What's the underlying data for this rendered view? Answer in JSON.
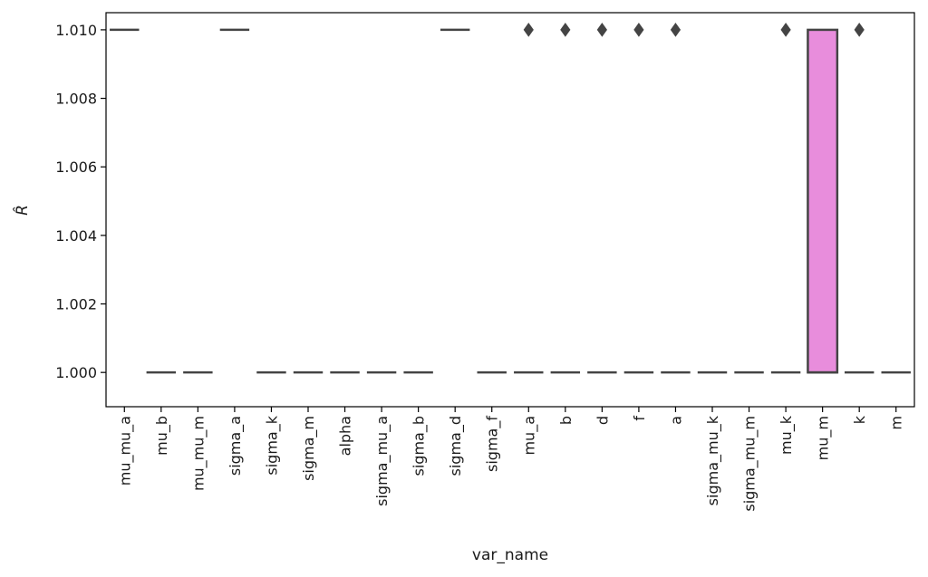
{
  "chart_data": {
    "type": "box",
    "title": "",
    "xlabel": "var_name",
    "ylabel": "R̂",
    "ylim": [
      0.999,
      1.0105
    ],
    "yticks": [
      "1.000",
      "1.002",
      "1.004",
      "1.006",
      "1.008",
      "1.010"
    ],
    "ytick_values": [
      1.0,
      1.002,
      1.004,
      1.006,
      1.008,
      1.01
    ],
    "colors": {
      "box_fill": "#e88ddc",
      "line": "#444444",
      "axis": "#000000"
    },
    "categories": [
      "mu_mu_a",
      "mu_b",
      "mu_mu_m",
      "sigma_a",
      "sigma_k",
      "sigma_m",
      "alpha",
      "sigma_mu_a",
      "sigma_b",
      "sigma_d",
      "sigma_f",
      "mu_a",
      "b",
      "d",
      "f",
      "a",
      "sigma_mu_k",
      "sigma_mu_m",
      "mu_k",
      "mu_m",
      "k",
      "m"
    ],
    "boxes": [
      {
        "q1": 1.01,
        "median": 1.01,
        "q3": 1.01,
        "outliers": []
      },
      {
        "q1": 1.0,
        "median": 1.0,
        "q3": 1.0,
        "outliers": []
      },
      {
        "q1": 1.0,
        "median": 1.0,
        "q3": 1.0,
        "outliers": []
      },
      {
        "q1": 1.01,
        "median": 1.01,
        "q3": 1.01,
        "outliers": []
      },
      {
        "q1": 1.0,
        "median": 1.0,
        "q3": 1.0,
        "outliers": []
      },
      {
        "q1": 1.0,
        "median": 1.0,
        "q3": 1.0,
        "outliers": []
      },
      {
        "q1": 1.0,
        "median": 1.0,
        "q3": 1.0,
        "outliers": []
      },
      {
        "q1": 1.0,
        "median": 1.0,
        "q3": 1.0,
        "outliers": []
      },
      {
        "q1": 1.0,
        "median": 1.0,
        "q3": 1.0,
        "outliers": []
      },
      {
        "q1": 1.01,
        "median": 1.01,
        "q3": 1.01,
        "outliers": []
      },
      {
        "q1": 1.0,
        "median": 1.0,
        "q3": 1.0,
        "outliers": []
      },
      {
        "q1": 1.0,
        "median": 1.0,
        "q3": 1.0,
        "outliers": [
          1.01
        ]
      },
      {
        "q1": 1.0,
        "median": 1.0,
        "q3": 1.0,
        "outliers": [
          1.01
        ]
      },
      {
        "q1": 1.0,
        "median": 1.0,
        "q3": 1.0,
        "outliers": [
          1.01
        ]
      },
      {
        "q1": 1.0,
        "median": 1.0,
        "q3": 1.0,
        "outliers": [
          1.01
        ]
      },
      {
        "q1": 1.0,
        "median": 1.0,
        "q3": 1.0,
        "outliers": [
          1.01
        ]
      },
      {
        "q1": 1.0,
        "median": 1.0,
        "q3": 1.0,
        "outliers": []
      },
      {
        "q1": 1.0,
        "median": 1.0,
        "q3": 1.0,
        "outliers": []
      },
      {
        "q1": 1.0,
        "median": 1.0,
        "q3": 1.0,
        "outliers": [
          1.01
        ]
      },
      {
        "q1": 1.0,
        "median": 1.0,
        "q3": 1.01,
        "outliers": []
      },
      {
        "q1": 1.0,
        "median": 1.0,
        "q3": 1.0,
        "outliers": [
          1.01
        ]
      },
      {
        "q1": 1.0,
        "median": 1.0,
        "q3": 1.0,
        "outliers": []
      }
    ]
  }
}
